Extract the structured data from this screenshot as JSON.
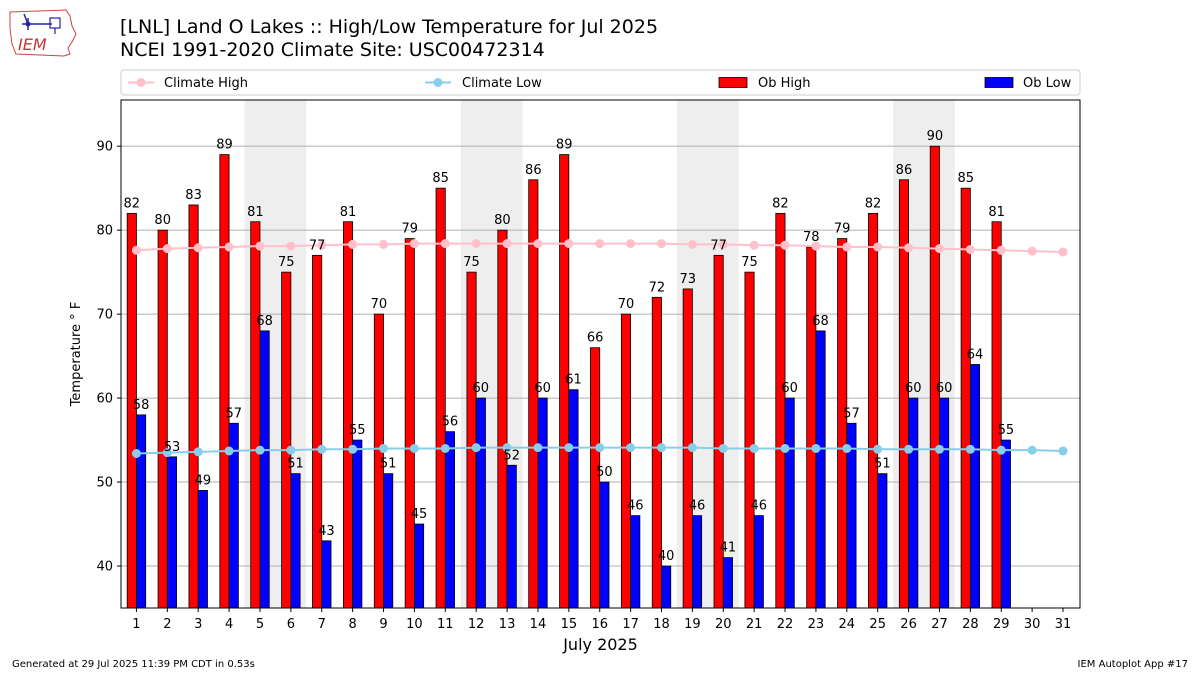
{
  "header": {
    "title_line1": "[LNL] Land O Lakes :: High/Low Temperature for Jul 2025",
    "title_line2": "NCEI 1991-2020 Climate Site: USC00472314",
    "logo_text": "IEM"
  },
  "footer": {
    "left": "Generated at 29 Jul 2025 11:39 PM CDT in 0.53s",
    "right": "IEM Autoplot App #17"
  },
  "chart_data": {
    "type": "bar",
    "xlabel": "July 2025",
    "ylabel": "Temperature ° F",
    "ylim": [
      35,
      95.5
    ],
    "yticks": [
      40,
      50,
      60,
      70,
      80,
      90
    ],
    "grid": "horizontal",
    "legend_position": "top",
    "categories": [
      "1",
      "2",
      "3",
      "4",
      "5",
      "6",
      "7",
      "8",
      "9",
      "10",
      "11",
      "12",
      "13",
      "14",
      "15",
      "16",
      "17",
      "18",
      "19",
      "20",
      "21",
      "22",
      "23",
      "24",
      "25",
      "26",
      "27",
      "28",
      "29",
      "30",
      "31"
    ],
    "weekend_shading": [
      [
        5,
        6
      ],
      [
        12,
        13
      ],
      [
        19,
        20
      ],
      [
        26,
        27
      ]
    ],
    "series": [
      {
        "name": "Climate High",
        "type": "line",
        "color": "#ffc0cb",
        "values": [
          77.6,
          77.8,
          77.9,
          78.0,
          78.1,
          78.1,
          78.2,
          78.3,
          78.3,
          78.4,
          78.4,
          78.4,
          78.4,
          78.4,
          78.4,
          78.4,
          78.4,
          78.4,
          78.3,
          78.3,
          78.2,
          78.2,
          78.1,
          78.0,
          78.0,
          77.9,
          77.8,
          77.7,
          77.6,
          77.5,
          77.4
        ]
      },
      {
        "name": "Climate Low",
        "type": "line",
        "color": "#87ceeb",
        "values": [
          53.4,
          53.5,
          53.6,
          53.7,
          53.8,
          53.8,
          53.9,
          53.9,
          54.0,
          54.0,
          54.0,
          54.1,
          54.1,
          54.1,
          54.1,
          54.1,
          54.1,
          54.1,
          54.1,
          54.0,
          54.0,
          54.0,
          54.0,
          54.0,
          53.9,
          53.9,
          53.9,
          53.9,
          53.8,
          53.8,
          53.7
        ]
      },
      {
        "name": "Ob High",
        "type": "bar",
        "color": "#ff0000",
        "values": [
          82,
          80,
          83,
          89,
          81,
          75,
          77,
          81,
          70,
          79,
          85,
          75,
          80,
          86,
          89,
          66,
          70,
          72,
          73,
          77,
          75,
          82,
          78,
          79,
          82,
          86,
          90,
          85,
          81,
          null,
          null
        ],
        "labels": [
          "82",
          "80",
          "83",
          "89",
          "81",
          "75",
          "77",
          "81",
          "70",
          "79",
          "85",
          "75",
          "80",
          "86",
          "89",
          "66",
          "70",
          "72",
          "73",
          "77",
          "75",
          "82",
          "78",
          "79",
          "82",
          "86",
          "90",
          "85",
          "81",
          "",
          ""
        ]
      },
      {
        "name": "Ob Low",
        "type": "bar",
        "color": "#0000ff",
        "values": [
          58,
          53,
          49,
          57,
          68,
          51,
          43,
          55,
          51,
          45,
          56,
          60,
          52,
          60,
          61,
          50,
          46,
          40,
          46,
          41,
          46,
          60,
          68,
          57,
          51,
          60,
          60,
          64,
          55,
          null,
          null
        ],
        "labels": [
          "58",
          "53",
          "49",
          "57",
          "68",
          "51",
          "43",
          "55",
          "51",
          "45",
          "56",
          "60",
          "52",
          "60",
          "61",
          "50",
          "46",
          "40",
          "46",
          "41",
          "46",
          "60",
          "68",
          "57",
          "51",
          "60",
          "60",
          "64",
          "55",
          "",
          ""
        ]
      }
    ]
  }
}
